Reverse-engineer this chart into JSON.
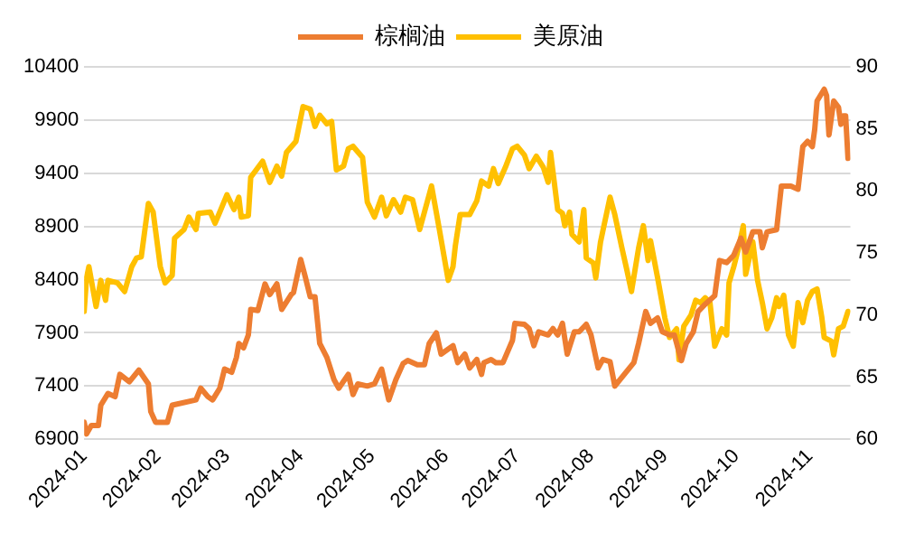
{
  "chart_data": {
    "type": "line",
    "xlim": [
      "2024-01-01",
      "2024-11-18"
    ],
    "xticks": [
      {
        "value": "2024-01-01",
        "label": "2024-01"
      },
      {
        "value": "2024-02-01",
        "label": "2024-02"
      },
      {
        "value": "2024-03-01",
        "label": "2024-03"
      },
      {
        "value": "2024-04-01",
        "label": "2024-04"
      },
      {
        "value": "2024-05-01",
        "label": "2024-05"
      },
      {
        "value": "2024-06-01",
        "label": "2024-06"
      },
      {
        "value": "2024-07-01",
        "label": "2024-07"
      },
      {
        "value": "2024-08-01",
        "label": "2024-08"
      },
      {
        "value": "2024-09-01",
        "label": "2024-09"
      },
      {
        "value": "2024-10-01",
        "label": "2024-10"
      },
      {
        "value": "2024-11-01",
        "label": "2024-11"
      }
    ],
    "ylim": [
      6900,
      10400
    ],
    "yticks": [
      6900,
      7400,
      7900,
      8400,
      8900,
      9400,
      9900,
      10400
    ],
    "y2lim": [
      60,
      90
    ],
    "y2ticks": [
      60,
      65,
      70,
      75,
      80,
      85,
      90
    ],
    "grid": "y",
    "legend": "top",
    "marker": "none",
    "line_style": "solid",
    "series": [
      {
        "name": "棕榈油",
        "color": "#ed7d31",
        "x": [
          "2024-01-01",
          "2024-01-02",
          "2024-01-04",
          "2024-01-07",
          "2024-01-08",
          "2024-01-11",
          "2024-01-14",
          "2024-01-16",
          "2024-01-20",
          "2024-01-24",
          "2024-01-28",
          "2024-01-29",
          "2024-01-31",
          "2024-02-05",
          "2024-02-07",
          "2024-02-17",
          "2024-02-19",
          "2024-02-22",
          "2024-02-24",
          "2024-02-27",
          "2024-02-29",
          "2024-03-03",
          "2024-03-05",
          "2024-03-06",
          "2024-03-08",
          "2024-03-10",
          "2024-03-11",
          "2024-03-14",
          "2024-03-17",
          "2024-03-19",
          "2024-03-22",
          "2024-03-24",
          "2024-03-28",
          "2024-03-29",
          "2024-04-01",
          "2024-04-03",
          "2024-04-05",
          "2024-04-07",
          "2024-04-09",
          "2024-04-12",
          "2024-04-15",
          "2024-04-17",
          "2024-04-21",
          "2024-04-23",
          "2024-04-25",
          "2024-04-29",
          "2024-05-02",
          "2024-05-05",
          "2024-05-08",
          "2024-05-11",
          "2024-05-14",
          "2024-05-16",
          "2024-05-20",
          "2024-05-23",
          "2024-05-25",
          "2024-05-28",
          "2024-05-30",
          "2024-06-04",
          "2024-06-06",
          "2024-06-09",
          "2024-06-11",
          "2024-06-14",
          "2024-06-16",
          "2024-06-17",
          "2024-06-20",
          "2024-06-22",
          "2024-06-25",
          "2024-06-29",
          "2024-06-30",
          "2024-07-04",
          "2024-07-06",
          "2024-07-08",
          "2024-07-10",
          "2024-07-14",
          "2024-07-16",
          "2024-07-18",
          "2024-07-20",
          "2024-07-22",
          "2024-07-25",
          "2024-07-27",
          "2024-07-30",
          "2024-08-01",
          "2024-08-04",
          "2024-08-06",
          "2024-08-09",
          "2024-08-11",
          "2024-08-15",
          "2024-08-19",
          "2024-08-21",
          "2024-08-24",
          "2024-08-26",
          "2024-08-29",
          "2024-08-31",
          "2024-09-03",
          "2024-09-05",
          "2024-09-08",
          "2024-09-10",
          "2024-09-13",
          "2024-09-15",
          "2024-09-18",
          "2024-09-22",
          "2024-09-24",
          "2024-09-27",
          "2024-09-30",
          "2024-10-03",
          "2024-10-05",
          "2024-10-08",
          "2024-10-11",
          "2024-10-12",
          "2024-10-14",
          "2024-10-18",
          "2024-10-20",
          "2024-10-24",
          "2024-10-27",
          "2024-10-29",
          "2024-10-31",
          "2024-11-02",
          "2024-11-03",
          "2024-11-04",
          "2024-11-07",
          "2024-11-08",
          "2024-11-09",
          "2024-11-11",
          "2024-11-13",
          "2024-11-14",
          "2024-11-15",
          "2024-11-16",
          "2024-11-17"
        ],
        "values": [
          7060,
          6950,
          7030,
          7030,
          7220,
          7330,
          7300,
          7510,
          7440,
          7550,
          7420,
          7160,
          7060,
          7060,
          7220,
          7270,
          7380,
          7300,
          7270,
          7380,
          7560,
          7530,
          7670,
          7800,
          7760,
          7880,
          8120,
          8110,
          8360,
          8260,
          8360,
          8120,
          8260,
          8280,
          8590,
          8420,
          8240,
          8240,
          7800,
          7670,
          7460,
          7380,
          7510,
          7320,
          7420,
          7400,
          7420,
          7560,
          7270,
          7460,
          7610,
          7640,
          7600,
          7600,
          7800,
          7900,
          7700,
          7780,
          7620,
          7700,
          7570,
          7650,
          7510,
          7620,
          7650,
          7620,
          7620,
          7830,
          7990,
          7980,
          7940,
          7780,
          7910,
          7880,
          7940,
          7880,
          7990,
          7700,
          7910,
          7910,
          7980,
          7880,
          7570,
          7650,
          7630,
          7400,
          7510,
          7620,
          7800,
          8100,
          7990,
          8040,
          7910,
          7880,
          7880,
          7640,
          7800,
          7910,
          8100,
          8170,
          8250,
          8580,
          8560,
          8630,
          8790,
          8660,
          8850,
          8850,
          8700,
          8850,
          8870,
          9280,
          9280,
          9250,
          9650,
          9700,
          9650,
          9810,
          10080,
          10190,
          10130,
          9760,
          10080,
          10020,
          9860,
          9940,
          9940,
          9540
        ]
      },
      {
        "name": "美原油",
        "color": "#ffc000",
        "axis": "y2",
        "x": [
          "2024-01-01",
          "2024-01-02",
          "2024-01-03",
          "2024-01-06",
          "2024-01-08",
          "2024-01-10",
          "2024-01-11",
          "2024-01-15",
          "2024-01-18",
          "2024-01-21",
          "2024-01-23",
          "2024-01-25",
          "2024-01-28",
          "2024-01-30",
          "2024-02-02",
          "2024-02-04",
          "2024-02-07",
          "2024-02-08",
          "2024-02-12",
          "2024-02-14",
          "2024-02-17",
          "2024-02-18",
          "2024-02-23",
          "2024-02-25",
          "2024-02-27",
          "2024-03-01",
          "2024-03-04",
          "2024-03-06",
          "2024-03-07",
          "2024-03-10",
          "2024-03-11",
          "2024-03-16",
          "2024-03-19",
          "2024-03-22",
          "2024-03-24",
          "2024-03-26",
          "2024-03-30",
          "2024-04-02",
          "2024-04-05",
          "2024-04-07",
          "2024-04-09",
          "2024-04-12",
          "2024-04-14",
          "2024-04-16",
          "2024-04-19",
          "2024-04-21",
          "2024-04-23",
          "2024-04-27",
          "2024-04-29",
          "2024-05-02",
          "2024-05-05",
          "2024-05-07",
          "2024-05-10",
          "2024-05-13",
          "2024-05-15",
          "2024-05-18",
          "2024-05-21",
          "2024-05-26",
          "2024-05-29",
          "2024-06-02",
          "2024-06-04",
          "2024-06-05",
          "2024-06-07",
          "2024-06-11",
          "2024-06-14",
          "2024-06-16",
          "2024-06-19",
          "2024-06-21",
          "2024-06-23",
          "2024-06-26",
          "2024-06-29",
          "2024-07-01",
          "2024-07-04",
          "2024-07-06",
          "2024-07-09",
          "2024-07-11",
          "2024-07-12",
          "2024-07-14",
          "2024-07-15",
          "2024-07-18",
          "2024-07-20",
          "2024-07-21",
          "2024-07-23",
          "2024-07-24",
          "2024-07-27",
          "2024-07-29",
          "2024-07-30",
          "2024-08-02",
          "2024-08-03",
          "2024-08-05",
          "2024-08-09",
          "2024-08-11",
          "2024-08-14",
          "2024-08-16",
          "2024-08-18",
          "2024-08-21",
          "2024-08-23",
          "2024-08-25",
          "2024-08-26",
          "2024-08-29",
          "2024-09-01",
          "2024-09-03",
          "2024-09-06",
          "2024-09-07",
          "2024-09-09",
          "2024-09-12",
          "2024-09-14",
          "2024-09-16",
          "2024-09-18",
          "2024-09-20",
          "2024-09-22",
          "2024-09-25",
          "2024-09-27",
          "2024-09-28",
          "2024-09-30",
          "2024-10-02",
          "2024-10-04",
          "2024-10-05",
          "2024-10-08",
          "2024-10-10",
          "2024-10-12",
          "2024-10-14",
          "2024-10-16",
          "2024-10-18",
          "2024-10-19",
          "2024-10-21",
          "2024-10-23",
          "2024-10-25",
          "2024-10-27",
          "2024-10-29",
          "2024-10-31",
          "2024-11-02",
          "2024-11-04",
          "2024-11-06",
          "2024-11-07",
          "2024-11-10",
          "2024-11-11",
          "2024-11-13",
          "2024-11-15",
          "2024-11-17"
        ],
        "values": [
          70.3,
          73.0,
          73.9,
          70.7,
          72.8,
          71.2,
          72.8,
          72.6,
          71.9,
          73.9,
          74.6,
          74.7,
          79.0,
          78.3,
          73.9,
          72.6,
          73.2,
          76.2,
          76.9,
          77.9,
          76.9,
          78.2,
          78.3,
          77.4,
          78.3,
          79.7,
          78.5,
          79.5,
          77.9,
          78.0,
          81.1,
          82.4,
          80.7,
          82.0,
          81.2,
          83.1,
          84.0,
          86.8,
          86.6,
          85.2,
          86.1,
          85.4,
          85.6,
          81.7,
          82.0,
          83.4,
          83.6,
          82.7,
          79.1,
          77.9,
          79.5,
          78.0,
          79.3,
          78.3,
          79.5,
          79.3,
          76.9,
          80.4,
          77.2,
          72.8,
          73.9,
          75.6,
          78.1,
          78.1,
          79.2,
          80.8,
          80.4,
          81.8,
          80.6,
          81.9,
          83.4,
          83.6,
          82.9,
          81.8,
          82.8,
          82.2,
          81.9,
          80.7,
          83.1,
          78.5,
          78.2,
          77.2,
          78.3,
          76.5,
          75.9,
          78.5,
          74.6,
          74.2,
          73.0,
          75.9,
          79.5,
          78.1,
          75.4,
          73.7,
          71.9,
          75.4,
          77.2,
          74.4,
          76.0,
          73.0,
          69.8,
          68.2,
          68.9,
          66.4,
          69.1,
          70.0,
          71.2,
          71.0,
          71.4,
          71.0,
          67.5,
          68.9,
          68.4,
          72.6,
          73.9,
          75.4,
          77.2,
          73.3,
          75.9,
          72.8,
          71.0,
          68.9,
          69.8,
          71.4,
          70.7,
          71.6,
          68.4,
          67.5,
          71.0,
          69.4,
          71.2,
          71.9,
          72.1,
          69.8,
          68.2,
          67.9,
          66.8,
          68.9,
          69.1,
          70.3
        ]
      }
    ]
  }
}
